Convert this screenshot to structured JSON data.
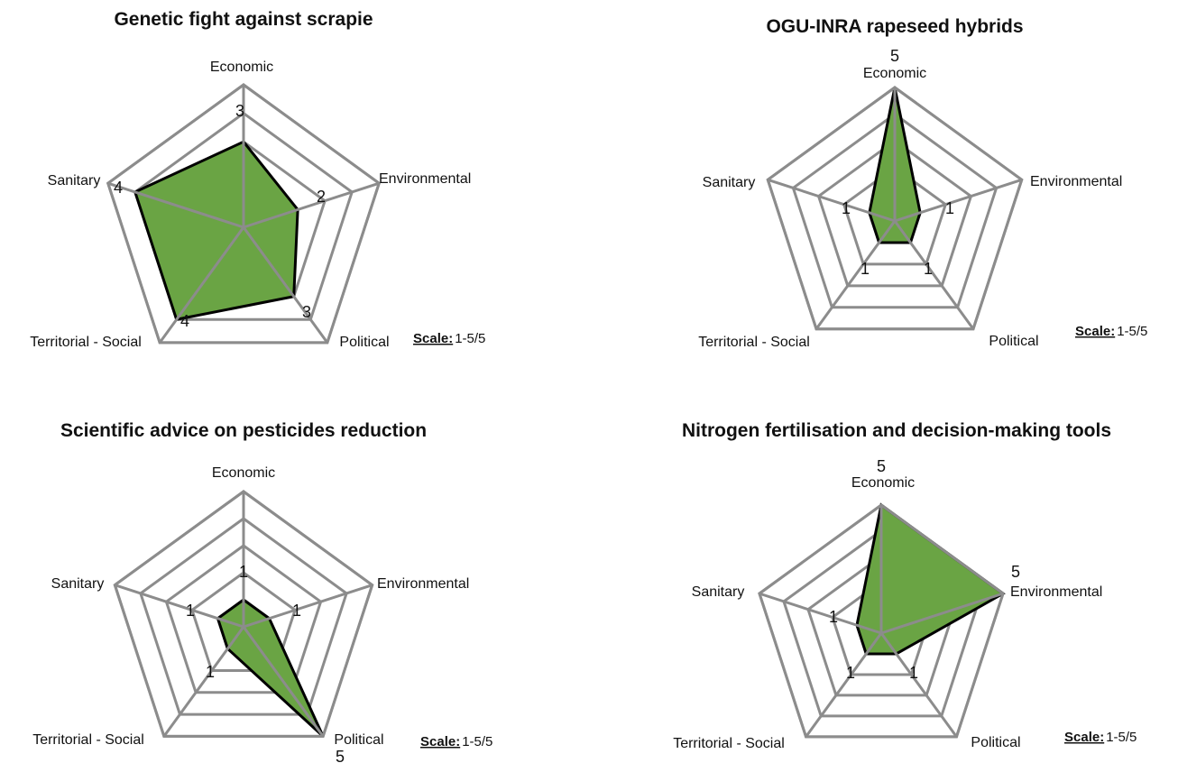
{
  "colors": {
    "fill": "#6aa444",
    "outline": "#000000",
    "grid": "#8c8c8c"
  },
  "chart_data": [
    {
      "type": "radar",
      "title": "Genetic fight against scrapie",
      "axes": [
        "Economic",
        "Environmental",
        "Political",
        "Territorial - Social",
        "Sanitary"
      ],
      "values": [
        3,
        2,
        3,
        4,
        4
      ],
      "value_labels": [
        "3",
        "2",
        "3",
        "4",
        "4"
      ],
      "rmax": 5,
      "rings": 5,
      "scale_key": "Scale:",
      "scale_text": "1-5/5"
    },
    {
      "type": "radar",
      "title": "OGU-INRA rapeseed hybrids",
      "axes": [
        "Economic",
        "Environmental",
        "Political",
        "Territorial - Social",
        "Sanitary"
      ],
      "values": [
        5,
        1,
        1,
        1,
        1
      ],
      "value_labels": [
        "5",
        "1",
        "1",
        "1",
        "1"
      ],
      "rmax": 5,
      "rings": 5,
      "scale_key": "Scale:",
      "scale_text": "1-5/5"
    },
    {
      "type": "radar",
      "title": "Scientific advice on pesticides reduction",
      "axes": [
        "Economic",
        "Environmental",
        "Political",
        "Territorial - Social",
        "Sanitary"
      ],
      "values": [
        1,
        1,
        5,
        1,
        1
      ],
      "value_labels": [
        "1",
        "1",
        "5",
        "1",
        "1"
      ],
      "rmax": 5,
      "rings": 5,
      "scale_key": "Scale:",
      "scale_text": "1-5/5"
    },
    {
      "type": "radar",
      "title": "Nitrogen fertilisation and decision-making tools",
      "axes": [
        "Economic",
        "Environmental",
        "Political",
        "Territorial - Social",
        "Sanitary"
      ],
      "values": [
        5,
        5,
        1,
        1,
        1
      ],
      "value_labels": [
        "5",
        "5",
        "1",
        "1",
        "1"
      ],
      "rmax": 5,
      "rings": 5,
      "scale_key": "Scale:",
      "scale_text": "1-5/5"
    }
  ]
}
